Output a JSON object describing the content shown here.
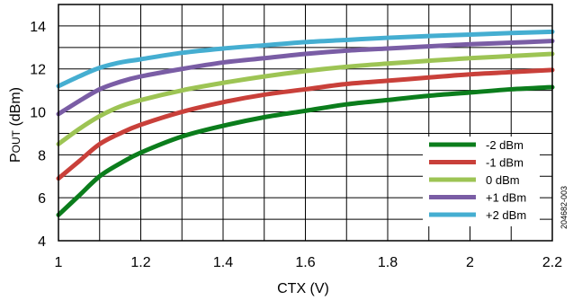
{
  "chart_data": {
    "type": "line",
    "xlabel": "CTX (V)",
    "ylabel_main": "P",
    "ylabel_sub": "OUT",
    "ylabel_tail": " (dBm)",
    "xlim": [
      1,
      2.2
    ],
    "ylim": [
      4,
      15
    ],
    "xticks": [
      "1",
      "1.2",
      "1.4",
      "1.6",
      "1.8",
      "2",
      "2.2"
    ],
    "yticks": [
      "4",
      "6",
      "8",
      "10",
      "12",
      "14"
    ],
    "x_grid_step": 0.1,
    "y_grid_step": 1,
    "grid": true,
    "legend_position": "bottom-right",
    "figure_id": "204682-003",
    "x": [
      1.0,
      1.05,
      1.1,
      1.15,
      1.2,
      1.3,
      1.4,
      1.5,
      1.6,
      1.7,
      1.8,
      1.9,
      2.0,
      2.1,
      2.2
    ],
    "series": [
      {
        "name": "-2 dBm",
        "color": "#0b7d1c",
        "values": [
          5.2,
          6.1,
          7.0,
          7.6,
          8.1,
          8.85,
          9.35,
          9.75,
          10.05,
          10.35,
          10.55,
          10.75,
          10.9,
          11.05,
          11.15
        ]
      },
      {
        "name": "-1 dBm",
        "color": "#c9403a",
        "values": [
          6.9,
          7.7,
          8.5,
          9.0,
          9.4,
          10.0,
          10.45,
          10.8,
          11.05,
          11.3,
          11.45,
          11.6,
          11.75,
          11.85,
          11.95
        ]
      },
      {
        "name": "0 dBm",
        "color": "#9dc454",
        "values": [
          8.5,
          9.2,
          9.8,
          10.25,
          10.55,
          11.0,
          11.35,
          11.65,
          11.9,
          12.1,
          12.25,
          12.38,
          12.5,
          12.6,
          12.7
        ]
      },
      {
        "name": "+1 dBm",
        "color": "#7a5da5",
        "values": [
          9.9,
          10.5,
          11.05,
          11.4,
          11.65,
          12.0,
          12.3,
          12.5,
          12.7,
          12.85,
          12.95,
          13.05,
          13.15,
          13.22,
          13.3
        ]
      },
      {
        "name": "+2 dBm",
        "color": "#45aed1",
        "values": [
          11.2,
          11.65,
          12.05,
          12.3,
          12.45,
          12.75,
          12.95,
          13.1,
          13.25,
          13.35,
          13.45,
          13.53,
          13.6,
          13.67,
          13.73
        ]
      }
    ]
  }
}
